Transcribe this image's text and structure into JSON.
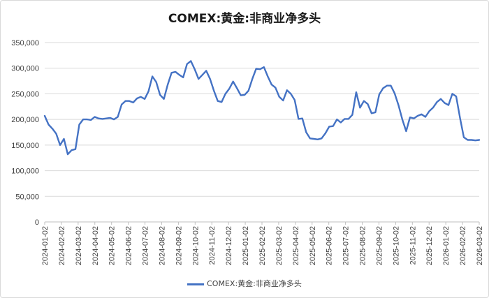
{
  "chart_data": {
    "type": "line",
    "title": "COMEX:黄金:非商业净多头",
    "xlabel": "",
    "ylabel": "",
    "ylim": [
      0,
      350000
    ],
    "y_ticks": [
      "0",
      "50,000",
      "100,000",
      "150,000",
      "200,000",
      "250,000",
      "300,000",
      "350,000"
    ],
    "y_tick_values": [
      0,
      50000,
      100000,
      150000,
      200000,
      250000,
      300000,
      350000
    ],
    "x_tick_labels": [
      "2024-01-02",
      "2024-02-02",
      "2024-03-02",
      "2024-04-02",
      "2024-05-02",
      "2024-06-02",
      "2024-07-02",
      "2024-08-02",
      "2024-09-02",
      "2024-10-02",
      "2024-11-02",
      "2024-12-02",
      "2025-01-02",
      "2025-02-02",
      "2025-03-02",
      "2025-04-02",
      "2025-05-02",
      "2025-06-02",
      "2025-07-02",
      "2025-08-02",
      "2025-09-02",
      "2025-10-02",
      "2025-11-02",
      "2025-12-02",
      "2026-01-02",
      "2026-02-02",
      "2026-03-02"
    ],
    "grid": true,
    "legend_position": "bottom",
    "series": [
      {
        "name": "COMEX:黄金:非商业净多头",
        "color": "#4472C4",
        "values": [
          207000,
          190000,
          182000,
          172000,
          150000,
          162000,
          132000,
          140000,
          142000,
          190000,
          200000,
          200000,
          199000,
          205000,
          202000,
          201000,
          202000,
          203000,
          200000,
          205000,
          229000,
          236000,
          236000,
          233000,
          241000,
          244000,
          240000,
          255000,
          284000,
          273000,
          248000,
          240000,
          268000,
          291000,
          293000,
          287000,
          282000,
          308000,
          314000,
          298000,
          279000,
          287000,
          295000,
          279000,
          256000,
          236000,
          234000,
          250000,
          260000,
          274000,
          261000,
          247000,
          248000,
          256000,
          279000,
          299000,
          298000,
          302000,
          284000,
          268000,
          262000,
          244000,
          237000,
          257000,
          250000,
          238000,
          201000,
          202000,
          175000,
          163000,
          162000,
          161000,
          163000,
          173000,
          186000,
          187000,
          200000,
          194000,
          201000,
          201000,
          209000,
          253000,
          223000,
          236000,
          230000,
          212000,
          214000,
          249000,
          261000,
          266000,
          266000,
          251000,
          228000,
          200000,
          177000,
          204000,
          202000,
          207000,
          210000,
          205000,
          216000,
          223000,
          234000,
          240000,
          232000,
          228000,
          250000,
          245000,
          203000,
          165000,
          160000,
          160000,
          159000,
          160000
        ]
      }
    ]
  }
}
